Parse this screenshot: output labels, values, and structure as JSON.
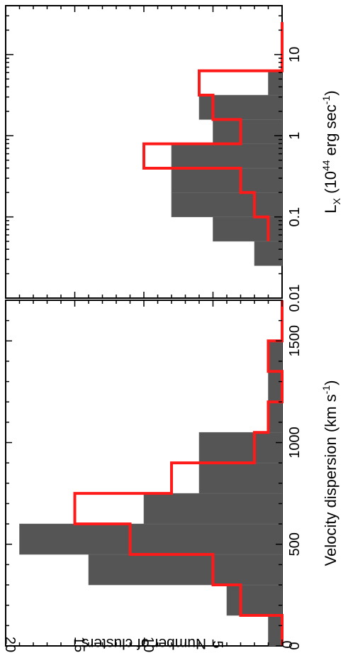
{
  "chart_data": [
    {
      "type": "bar",
      "panel": "velocity-dispersion",
      "xlabel": "Velocity dispersion (km s",
      "xlabel_sup": "-1",
      "xlabel_close": ")",
      "ylabel": "Number of clusters",
      "xlim": [
        0,
        1700
      ],
      "ylim": [
        0,
        20
      ],
      "xticks": [
        0,
        500,
        1000,
        1500
      ],
      "yticks": [
        0,
        5,
        10,
        15,
        20
      ],
      "bin_width": 150,
      "series": [
        {
          "name": "",
          "style": "filled-dark",
          "color": "#555555",
          "bin_starts": [
            0,
            150,
            300,
            450,
            600,
            750,
            900,
            1050,
            1200,
            1350,
            1500,
            1650
          ],
          "values": [
            1,
            4,
            14,
            19,
            10,
            6,
            6,
            1,
            1,
            1,
            0,
            0
          ]
        },
        {
          "name": "",
          "style": "outline",
          "color": "#ff1a1a",
          "bin_starts": [
            0,
            150,
            300,
            450,
            600,
            750,
            900,
            1050,
            1200,
            1350,
            1500,
            1650
          ],
          "values": [
            0,
            3,
            5,
            11,
            15,
            8,
            2,
            1,
            0,
            1,
            0,
            0
          ]
        }
      ]
    },
    {
      "type": "bar",
      "panel": "x-ray-luminosity",
      "xscale": "log",
      "xlabel": "L",
      "xlabel_sub": "X",
      "xlabel_mid": " (10",
      "xlabel_sup": "44",
      "xlabel_rest": " erg sec",
      "xlabel_sup2": "-1",
      "xlabel_close": ")",
      "xlim": [
        0.01,
        40
      ],
      "ylim": [
        0,
        20
      ],
      "xtick_labels": [
        "0.01",
        "0.1",
        "1",
        "10"
      ],
      "xticks": [
        0.01,
        0.1,
        1,
        10
      ],
      "series": [
        {
          "name": "",
          "style": "filled-dark",
          "color": "#555555",
          "bin_edges_log10": [
            -1.6,
            -1.3,
            -1.0,
            -0.7,
            -0.4,
            -0.1,
            0.2,
            0.5,
            0.8,
            1.1,
            1.4
          ],
          "values": [
            2,
            5,
            8,
            8,
            8,
            5,
            6,
            1,
            0,
            0
          ]
        },
        {
          "name": "",
          "style": "outline",
          "color": "#ff1a1a",
          "bin_edges_log10": [
            -1.3,
            -1.0,
            -0.7,
            -0.4,
            -0.1,
            0.2,
            0.5,
            0.8,
            1.1,
            1.4
          ],
          "values": [
            1,
            2,
            3,
            10,
            3,
            5,
            6,
            0,
            0
          ]
        }
      ]
    }
  ]
}
